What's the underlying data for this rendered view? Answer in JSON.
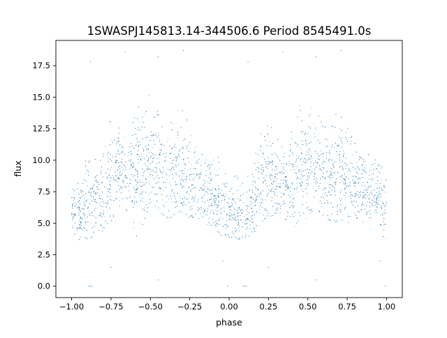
{
  "chart_data": {
    "type": "scatter",
    "title": "1SWASPJ145813.14-344506.6 Period 8545491.0s",
    "xlabel": "phase",
    "ylabel": "flux",
    "xlim": [
      -1.1,
      1.1
    ],
    "ylim": [
      -0.9,
      19.5
    ],
    "x_ticks": [
      -1.0,
      -0.75,
      -0.5,
      -0.25,
      0.0,
      0.25,
      0.5,
      0.75,
      1.0
    ],
    "x_tick_labels": [
      "−1.00",
      "−0.75",
      "−0.50",
      "−0.25",
      "0.00",
      "0.25",
      "0.50",
      "0.75",
      "1.00"
    ],
    "y_ticks": [
      0.0,
      2.5,
      5.0,
      7.5,
      10.0,
      12.5,
      15.0,
      17.5
    ],
    "y_tick_labels": [
      "0.0",
      "2.5",
      "5.0",
      "7.5",
      "10.0",
      "12.5",
      "15.0",
      "17.5"
    ],
    "grid": false,
    "legend": "none",
    "marker_color": "#1f77b4",
    "phase_profile": {
      "x": [
        -1.0,
        -0.95,
        -0.9,
        -0.85,
        -0.8,
        -0.75,
        -0.7,
        -0.65,
        -0.6,
        -0.55,
        -0.5,
        -0.45,
        -0.4,
        -0.35,
        -0.3,
        -0.25,
        -0.2,
        -0.15,
        -0.1,
        -0.05,
        0.0,
        0.05,
        0.1,
        0.15,
        0.2,
        0.25,
        0.3,
        0.35,
        0.4,
        0.45,
        0.5,
        0.55,
        0.6,
        0.65,
        0.7,
        0.75,
        0.8,
        0.85,
        0.9,
        0.95,
        1.0
      ],
      "y_median": [
        6.3,
        5.6,
        6.1,
        6.6,
        7.0,
        8.6,
        9.2,
        8.9,
        8.6,
        9.4,
        9.8,
        9.0,
        8.4,
        8.8,
        9.2,
        8.4,
        7.9,
        7.4,
        7.0,
        6.6,
        6.2,
        5.7,
        5.4,
        6.4,
        8.1,
        8.9,
        8.4,
        7.8,
        8.2,
        9.3,
        10.0,
        9.1,
        8.5,
        8.4,
        8.9,
        8.5,
        7.9,
        7.6,
        7.3,
        6.9,
        6.3
      ],
      "y_min": [
        4.0,
        4.0,
        4.0,
        4.2,
        4.6,
        5.4,
        6.2,
        6.3,
        4.0,
        4.4,
        7.0,
        6.3,
        5.6,
        5.8,
        6.0,
        5.6,
        5.4,
        5.2,
        4.8,
        4.1,
        3.8,
        4.0,
        4.0,
        3.9,
        5.3,
        5.6,
        6.0,
        5.3,
        5.8,
        4.0,
        6.0,
        6.3,
        5.5,
        5.3,
        5.3,
        5.3,
        5.0,
        4.8,
        4.6,
        4.4,
        4.0
      ],
      "y_max": [
        8.4,
        8.0,
        10.8,
        11.3,
        11.7,
        13.1,
        12.5,
        12.9,
        13.2,
        14.5,
        15.0,
        14.8,
        13.1,
        13.5,
        14.2,
        12.8,
        10.9,
        10.4,
        10.2,
        9.8,
        8.6,
        8.7,
        8.6,
        9.0,
        12.6,
        13.3,
        11.9,
        11.1,
        12.9,
        14.0,
        15.3,
        14.1,
        13.3,
        12.9,
        14.1,
        12.5,
        11.2,
        10.5,
        10.4,
        9.8,
        8.6
      ]
    },
    "outliers": [
      {
        "x": -0.89,
        "y": 0.0
      },
      {
        "x": -0.88,
        "y": 0.0
      },
      {
        "x": -0.87,
        "y": 0.0
      },
      {
        "x": 0.09,
        "y": 0.0
      },
      {
        "x": 0.1,
        "y": 0.0
      },
      {
        "x": 0.11,
        "y": 0.0
      },
      {
        "x": -0.88,
        "y": 17.8
      },
      {
        "x": 0.12,
        "y": 17.8
      },
      {
        "x": -0.45,
        "y": 18.2
      },
      {
        "x": -0.29,
        "y": 18.7
      },
      {
        "x": 0.55,
        "y": 18.2
      },
      {
        "x": 0.71,
        "y": 18.7
      },
      {
        "x": -0.66,
        "y": 18.6
      },
      {
        "x": 0.34,
        "y": 18.6
      },
      {
        "x": 0.96,
        "y": 2.0
      },
      {
        "x": -0.04,
        "y": 2.0
      },
      {
        "x": 0.99,
        "y": 0.0
      },
      {
        "x": -0.01,
        "y": 0.0
      },
      {
        "x": -0.45,
        "y": 0.5
      },
      {
        "x": 0.55,
        "y": 0.5
      },
      {
        "x": 0.25,
        "y": 1.5
      },
      {
        "x": -0.75,
        "y": 1.5
      }
    ]
  }
}
